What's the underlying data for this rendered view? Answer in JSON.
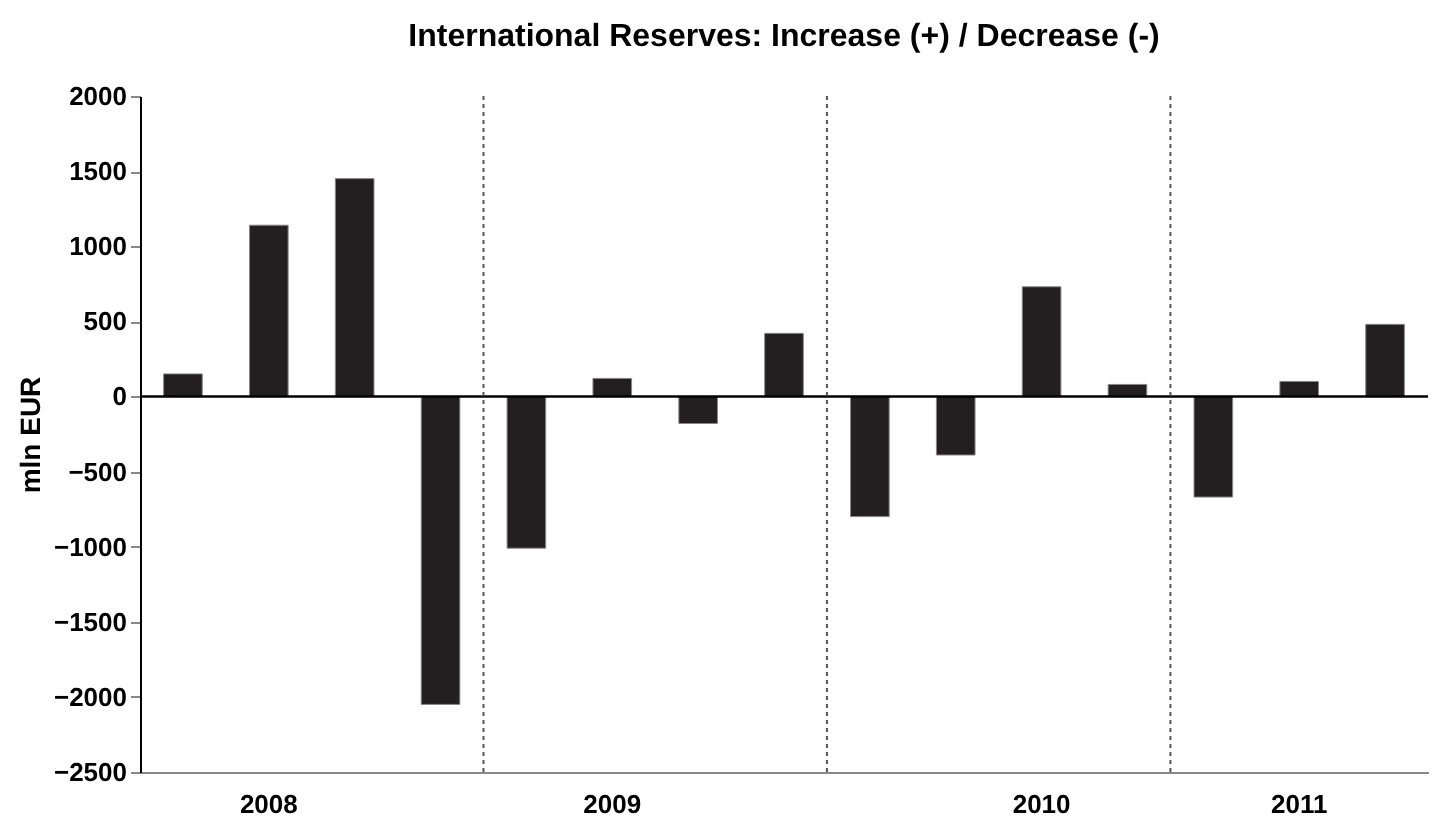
{
  "chart_data": {
    "type": "bar",
    "title": "International Reserves: Increase (+) / Decrease (-)",
    "ylabel": "mln EUR",
    "categories": [
      null,
      "2008",
      null,
      null,
      null,
      "2009",
      null,
      null,
      null,
      null,
      "2010",
      null,
      null,
      "2011",
      null
    ],
    "values": [
      150,
      1140,
      1450,
      -2050,
      -1010,
      120,
      -180,
      420,
      -800,
      -390,
      730,
      80,
      -670,
      100,
      480
    ],
    "color": "#231f20",
    "ylim": [
      -2500,
      2000
    ],
    "yticks": [
      -2500,
      -2000,
      -1500,
      -1000,
      -500,
      0,
      500,
      1000,
      1500,
      2000
    ],
    "grid": false
  }
}
